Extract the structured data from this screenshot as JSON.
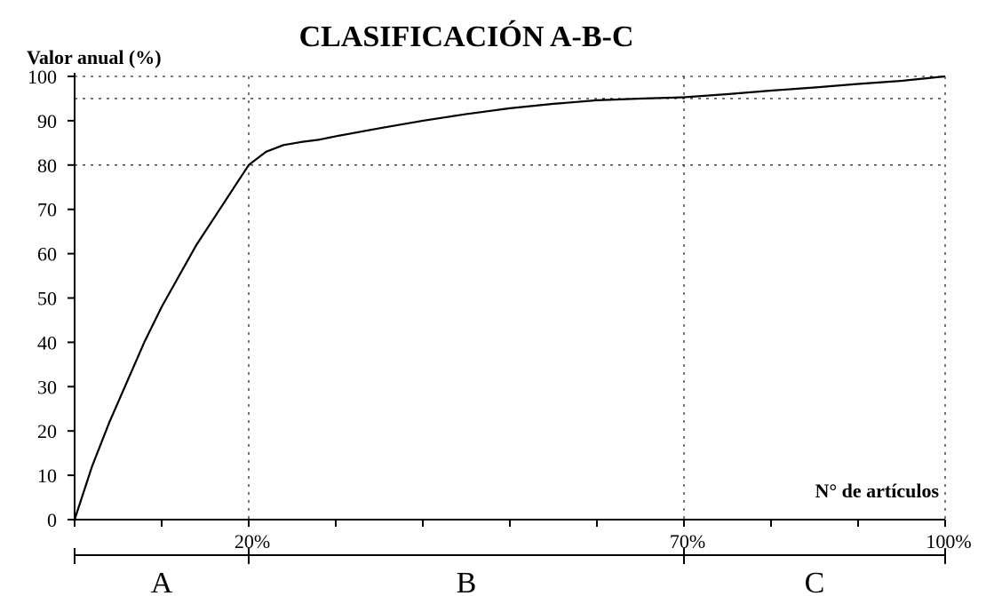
{
  "chart_data": {
    "type": "line",
    "title": "CLASIFICACIÓN A-B-C",
    "ylabel": "Valor anual (%)",
    "xlabel": "N° de artículos",
    "ylim": [
      0,
      100
    ],
    "xlim": [
      0,
      100
    ],
    "y_ticks": [
      0,
      10,
      20,
      30,
      40,
      50,
      60,
      70,
      80,
      90,
      100
    ],
    "x_tick_values": [
      0,
      10,
      20,
      30,
      40,
      50,
      60,
      70,
      80,
      90,
      100
    ],
    "x_labels": [
      {
        "value": 20,
        "label": "20%"
      },
      {
        "value": 70,
        "label": "70%"
      },
      {
        "value": 100,
        "label": "100%"
      }
    ],
    "zones": [
      {
        "label": "A",
        "from": 0,
        "to": 20
      },
      {
        "label": "B",
        "from": 20,
        "to": 70
      },
      {
        "label": "C",
        "from": 70,
        "to": 100
      }
    ],
    "reference_lines": {
      "horizontal": [
        80,
        95,
        100
      ],
      "vertical": [
        20,
        70,
        100
      ]
    },
    "grid": false,
    "series": [
      {
        "x": [
          0,
          2,
          4,
          6,
          8,
          10,
          12,
          14,
          16,
          18,
          20,
          22,
          24,
          26,
          28,
          30,
          35,
          40,
          45,
          50,
          55,
          60,
          65,
          70,
          75,
          80,
          85,
          90,
          95,
          100
        ],
        "y": [
          0,
          12,
          22,
          31,
          40,
          48,
          55,
          62,
          68,
          74,
          80,
          83,
          84.5,
          85.2,
          85.7,
          86.5,
          88.3,
          90,
          91.5,
          92.8,
          93.8,
          94.6,
          95,
          95.3,
          96,
          96.8,
          97.5,
          98.3,
          99,
          100
        ]
      }
    ]
  }
}
